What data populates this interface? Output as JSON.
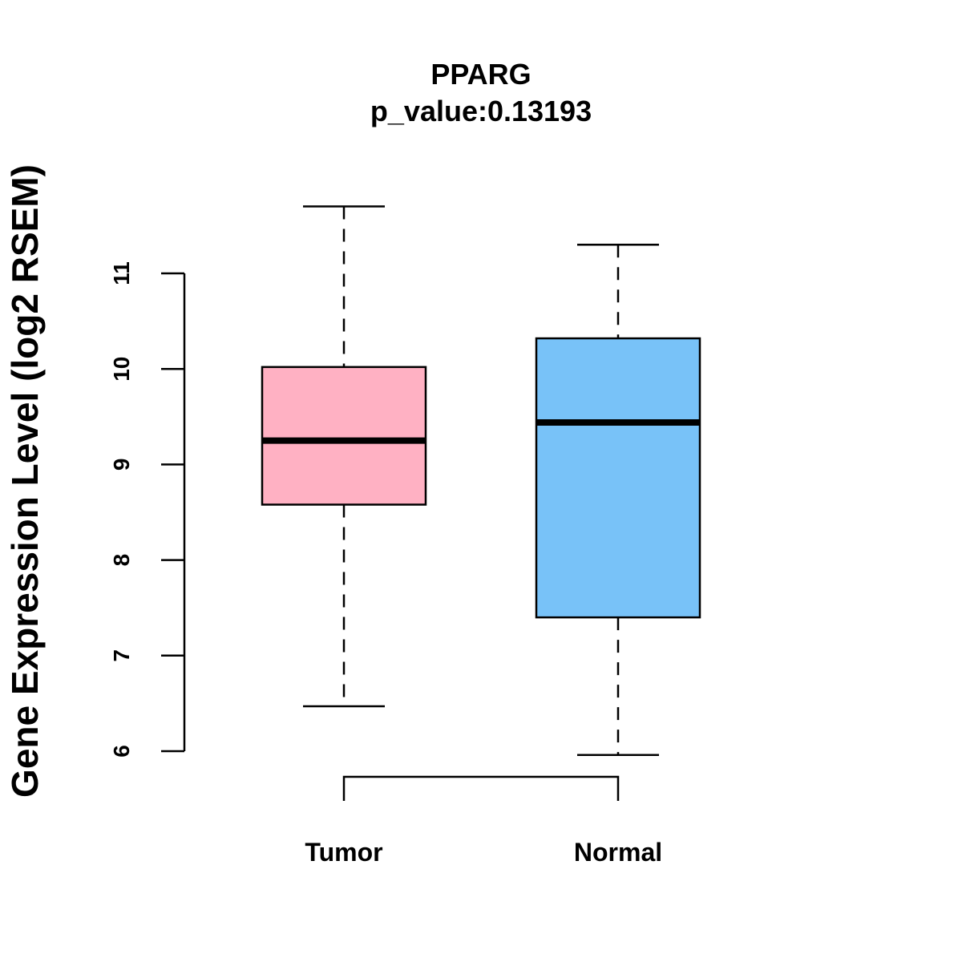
{
  "chart_data": {
    "type": "boxplot",
    "title": "PPARG",
    "subtitle": "p_value:0.13193",
    "xlabel": "",
    "ylabel": "Gene Expression Level (log2 RSEM)",
    "ylim": [
      6,
      11
    ],
    "yticks": [
      6,
      7,
      8,
      9,
      10,
      11
    ],
    "categories": [
      "Tumor",
      "Normal"
    ],
    "series": [
      {
        "name": "Tumor",
        "whisker_low": 6.47,
        "q1": 8.58,
        "median": 9.25,
        "q3": 10.02,
        "whisker_high": 11.7,
        "color": "#FFB1C3"
      },
      {
        "name": "Normal",
        "whisker_low": 5.96,
        "q1": 7.4,
        "median": 9.44,
        "q3": 10.32,
        "whisker_high": 11.3,
        "color": "#78C2F8"
      }
    ],
    "comparison": {
      "from": "Tumor",
      "to": "Normal"
    }
  }
}
